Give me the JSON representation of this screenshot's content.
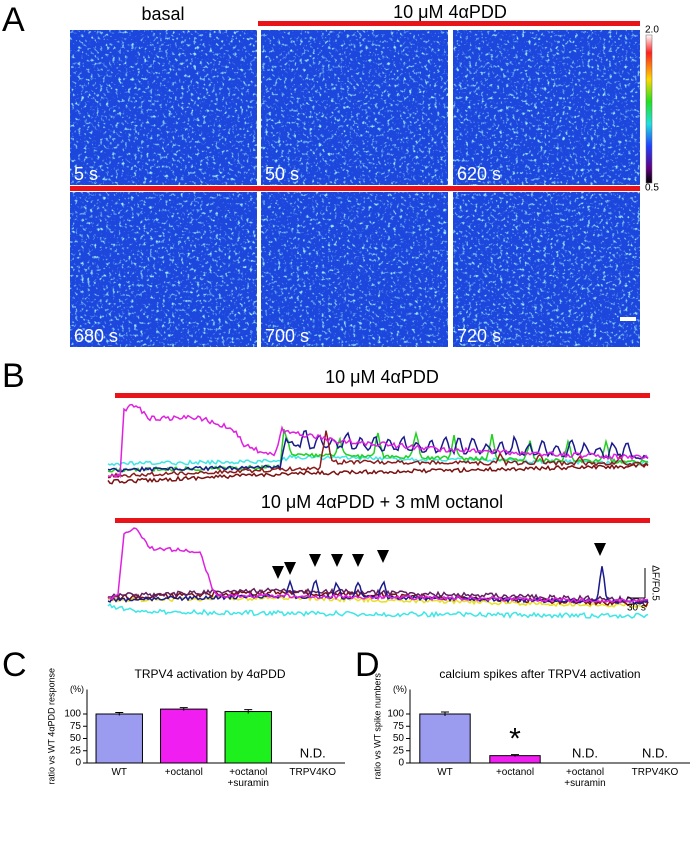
{
  "panel_labels": [
    "A",
    "B",
    "C",
    "D"
  ],
  "panel_a": {
    "basal_label": "basal",
    "treatment_label": "10 μM 4αPDD",
    "timestamps": [
      "5 s",
      "50 s",
      "620 s",
      "680 s",
      "700 s",
      "720 s"
    ],
    "colorbar_max": "2.0",
    "colorbar_min": "0.5"
  },
  "panel_b": {
    "title_1": "10 μM 4αPDD",
    "title_2": "10 μM 4αPDD + 3 mM octanol",
    "scale_y": "ΔF/F0.5",
    "scale_x": "30 s"
  },
  "chart_data": [
    {
      "type": "bar",
      "title": "TRPV4 activation by 4αPDD",
      "y_label": "ratio vs WT 4αPDD response",
      "y_unit": "(%)",
      "categories": [
        "WT",
        "+octanol",
        "+octanol\n+suramin",
        "TRPV4KO"
      ],
      "values": [
        100,
        110,
        105,
        null
      ],
      "errors": [
        3,
        3,
        4,
        null
      ],
      "value_labels": [
        null,
        null,
        null,
        "N.D."
      ],
      "significance": [
        null,
        null,
        null,
        null
      ],
      "colors": [
        "#9b9bf0",
        "#f01ef0",
        "#1ef01e",
        null
      ],
      "ylim": [
        0,
        150
      ],
      "yticks": [
        0,
        25,
        50,
        75,
        100
      ]
    },
    {
      "type": "bar",
      "title": "calcium spikes after TRPV4 activation",
      "y_label": "ratio vs WT spike numbers",
      "y_unit": "(%)",
      "categories": [
        "WT",
        "+octanol",
        "+octanol\n+suramin",
        "TRPV4KO"
      ],
      "values": [
        100,
        15,
        null,
        null
      ],
      "errors": [
        4,
        2,
        null,
        null
      ],
      "value_labels": [
        null,
        null,
        "N.D.",
        "N.D."
      ],
      "significance": [
        null,
        "*",
        null,
        null
      ],
      "colors": [
        "#9b9bf0",
        "#f01ef0",
        null,
        null
      ],
      "ylim": [
        0,
        150
      ],
      "yticks": [
        0,
        25,
        50,
        75,
        100
      ]
    }
  ]
}
